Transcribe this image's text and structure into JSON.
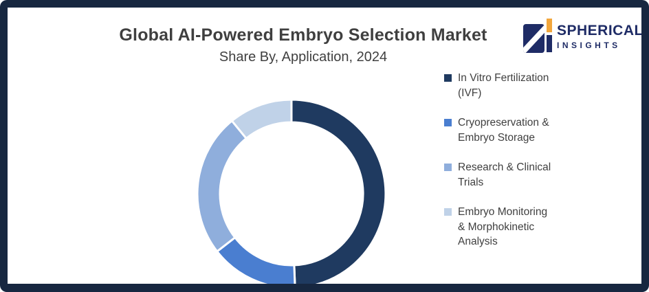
{
  "header": {
    "title": "Global AI-Powered Embryo Selection Market",
    "subtitle": "Share By, Application, 2024"
  },
  "logo": {
    "name": "SPHERICAL",
    "tagline": "INSIGHTS",
    "navy": "#1F2C66",
    "orange": "#F2A63C"
  },
  "frame": {
    "border_color": "#172740",
    "background": "#FFFFFF",
    "title_color": "#3F3F3F"
  },
  "chart_data": {
    "type": "pie",
    "variant": "donut",
    "title": "Global AI-Powered Embryo Selection Market",
    "subtitle": "Share By, Application, 2024",
    "unit": "% share (estimated from arc angles; no numeric labels shown)",
    "start_angle_deg": 0,
    "direction": "clockwise",
    "legend_position": "right",
    "grid": false,
    "series": [
      {
        "name": "In Vitro Fertilization (IVF)",
        "label_lines": "In Vitro Fertilization\n(IVF)",
        "value": 49.4,
        "color": "#1F3A60"
      },
      {
        "name": "Cryopreservation & Embryo Storage",
        "label_lines": "Cryopreservation &\nEmbryo Storage",
        "value": 15.1,
        "color": "#4A7ED0"
      },
      {
        "name": "Research & Clinical Trials",
        "label_lines": "Research & Clinical\nTrials",
        "value": 24.6,
        "color": "#8FAEDC"
      },
      {
        "name": "Embryo Monitoring & Morphokinetic Analysis",
        "label_lines": "Embryo Monitoring\n& Morphokinetic\nAnalysis",
        "value": 10.9,
        "color": "#C0D2E8"
      }
    ]
  }
}
